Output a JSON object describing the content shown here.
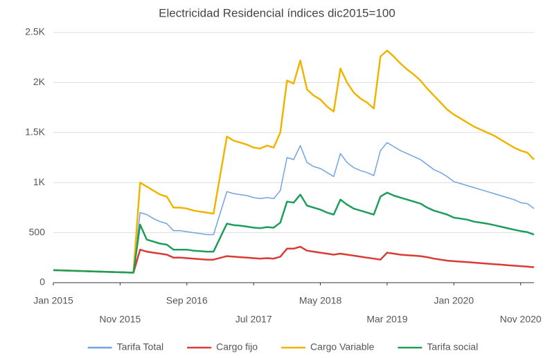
{
  "chart_data": {
    "type": "line",
    "title": "Electricidad Residencial  índices dic2015=100",
    "x": [
      "2015-01",
      "2016-01",
      "2016-02",
      "2016-03",
      "2016-04",
      "2016-05",
      "2016-06",
      "2016-07",
      "2016-08",
      "2016-09",
      "2016-10",
      "2016-11",
      "2016-12",
      "2017-01",
      "2017-03",
      "2017-04",
      "2017-05",
      "2017-06",
      "2017-07",
      "2017-08",
      "2017-09",
      "2017-10",
      "2017-11",
      "2017-12",
      "2018-01",
      "2018-02",
      "2018-03",
      "2018-04",
      "2018-05",
      "2018-06",
      "2018-07",
      "2018-08",
      "2018-09",
      "2018-10",
      "2018-11",
      "2018-12",
      "2019-01",
      "2019-02",
      "2019-03",
      "2019-04",
      "2019-05",
      "2019-06",
      "2019-07",
      "2019-08",
      "2019-09",
      "2019-10",
      "2019-11",
      "2019-12",
      "2020-01",
      "2020-02",
      "2020-03",
      "2020-04",
      "2020-05",
      "2020-06",
      "2020-07",
      "2020-08",
      "2020-09",
      "2020-10",
      "2020-11",
      "2020-12",
      "2021-01"
    ],
    "series": [
      {
        "name": "Tarifa Total",
        "color": "#6fa3e3",
        "values": [
          125,
          100,
          700,
          680,
          640,
          610,
          590,
          520,
          520,
          510,
          500,
          490,
          480,
          480,
          910,
          890,
          880,
          870,
          850,
          840,
          850,
          840,
          920,
          1250,
          1230,
          1370,
          1200,
          1160,
          1140,
          1100,
          1060,
          1290,
          1200,
          1150,
          1120,
          1100,
          1070,
          1320,
          1400,
          1360,
          1320,
          1290,
          1260,
          1230,
          1180,
          1130,
          1100,
          1060,
          1010,
          990,
          970,
          950,
          930,
          910,
          890,
          870,
          850,
          830,
          800,
          790,
          740
        ]
      },
      {
        "name": "Cargo fijo",
        "color": "#d93a32",
        "values": [
          125,
          100,
          330,
          310,
          300,
          290,
          280,
          250,
          250,
          245,
          240,
          235,
          230,
          230,
          265,
          260,
          255,
          250,
          245,
          240,
          245,
          240,
          260,
          340,
          340,
          360,
          320,
          310,
          300,
          290,
          280,
          290,
          280,
          270,
          260,
          250,
          240,
          230,
          300,
          290,
          280,
          275,
          270,
          265,
          255,
          240,
          230,
          220,
          215,
          210,
          205,
          200,
          195,
          190,
          185,
          180,
          175,
          170,
          165,
          160,
          155
        ]
      },
      {
        "name": "Cargo Variable",
        "color": "#f0b400",
        "values": [
          125,
          100,
          1000,
          960,
          920,
          880,
          860,
          750,
          750,
          740,
          720,
          710,
          700,
          690,
          1460,
          1420,
          1400,
          1380,
          1350,
          1340,
          1370,
          1350,
          1500,
          2020,
          1990,
          2220,
          1930,
          1870,
          1830,
          1760,
          1710,
          2140,
          2000,
          1900,
          1840,
          1800,
          1740,
          2260,
          2320,
          2260,
          2190,
          2130,
          2080,
          2020,
          1940,
          1870,
          1800,
          1730,
          1680,
          1640,
          1600,
          1560,
          1530,
          1500,
          1470,
          1430,
          1390,
          1350,
          1320,
          1300,
          1230
        ]
      },
      {
        "name": "Tarifa social",
        "color": "#1e9c5a",
        "values": [
          125,
          100,
          580,
          430,
          410,
          390,
          380,
          330,
          330,
          330,
          320,
          315,
          310,
          310,
          590,
          575,
          570,
          560,
          550,
          545,
          555,
          550,
          600,
          810,
          800,
          880,
          770,
          750,
          730,
          700,
          680,
          830,
          780,
          740,
          720,
          700,
          680,
          860,
          900,
          870,
          850,
          830,
          810,
          790,
          750,
          720,
          700,
          680,
          650,
          640,
          630,
          610,
          600,
          590,
          575,
          560,
          545,
          530,
          515,
          505,
          480
        ]
      }
    ],
    "xlim": [
      "2015-01",
      "2021-01"
    ],
    "xticks": [
      {
        "value": "2015-01",
        "label": "Jan 2015"
      },
      {
        "value": "2015-11",
        "label": "Nov 2015"
      },
      {
        "value": "2016-09",
        "label": "Sep 2016"
      },
      {
        "value": "2017-07",
        "label": "Jul 2017"
      },
      {
        "value": "2018-05",
        "label": "May 2018"
      },
      {
        "value": "2019-03",
        "label": "Mar 2019"
      },
      {
        "value": "2020-01",
        "label": "Jan 2020"
      },
      {
        "value": "2020-11",
        "label": "Nov 2020"
      }
    ],
    "ylim": [
      0,
      2500
    ],
    "yticks": [
      0,
      500,
      {
        "value": 1000,
        "label": "1K"
      },
      {
        "value": 1500,
        "label": "1.5K"
      },
      {
        "value": 2000,
        "label": "2K"
      },
      {
        "value": 2500,
        "label": "2.5K"
      }
    ],
    "grid": true,
    "legend": "bottom"
  }
}
